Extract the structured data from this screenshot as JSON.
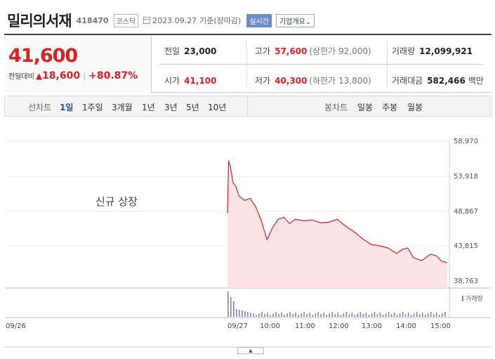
{
  "header": {
    "name": "밀리의서재",
    "code": "418470",
    "market": "코스닥",
    "date": "2023.09.27",
    "basis": "기준(장마감)",
    "realtime": "실시간",
    "overview": "기업개요⌄"
  },
  "price": {
    "current": "41,600",
    "change_label": "전일대비",
    "change": "18,600",
    "change_pct": "+80.87%"
  },
  "stats": {
    "prev_close_label": "전일",
    "prev_close": "23,000",
    "high_label": "고가",
    "high": "57,600",
    "high_limit": "(상한가 92,000)",
    "volume_label": "거래량",
    "volume": "12,099,921",
    "open_label": "시가",
    "open": "41,100",
    "low_label": "저가",
    "low": "40,300",
    "low_limit": "(하한가 13,800)",
    "amount_label": "거래대금",
    "amount": "582,466",
    "amount_unit": "백만"
  },
  "tabs": {
    "line_label": "선차트",
    "periods": [
      "1일",
      "1주일",
      "3개월",
      "1년",
      "3년",
      "5년",
      "10년"
    ],
    "active": "1일",
    "candle_label": "봉차트",
    "candles": [
      "일봉",
      "주봉",
      "월봉"
    ]
  },
  "chart_data": {
    "type": "area",
    "note": "신규 상장",
    "volume_label": "거래량",
    "y_ticks": [
      "58,970",
      "53,918",
      "48,867",
      "43,815",
      "38,763"
    ],
    "ylim": [
      38763,
      58970
    ],
    "x_ticks": [
      "09/26",
      "09/27",
      "10:00",
      "11:00",
      "12:00",
      "13:00",
      "14:00",
      "15:00"
    ],
    "x": [
      "09:00",
      "09:02",
      "09:05",
      "09:10",
      "09:15",
      "09:20",
      "09:30",
      "09:40",
      "09:50",
      "10:00",
      "10:10",
      "10:20",
      "10:30",
      "10:40",
      "10:50",
      "11:00",
      "11:15",
      "11:30",
      "11:45",
      "12:00",
      "12:15",
      "12:30",
      "12:45",
      "13:00",
      "13:15",
      "13:30",
      "13:45",
      "14:00",
      "14:10",
      "14:20",
      "14:30",
      "14:45",
      "15:00",
      "15:10",
      "15:20",
      "15:30"
    ],
    "values": [
      48700,
      56200,
      55400,
      53000,
      52500,
      51200,
      50500,
      50800,
      49600,
      47600,
      44900,
      46600,
      47800,
      48100,
      47200,
      47800,
      47600,
      47700,
      47300,
      47400,
      47800,
      46800,
      46000,
      45000,
      44200,
      44000,
      43700,
      42900,
      43500,
      43700,
      42300,
      41900,
      42800,
      42600,
      41800,
      41600
    ],
    "accent_color": "#e02020",
    "fill_color": "#fde4e4",
    "volume_color": "#8a7fbf"
  }
}
